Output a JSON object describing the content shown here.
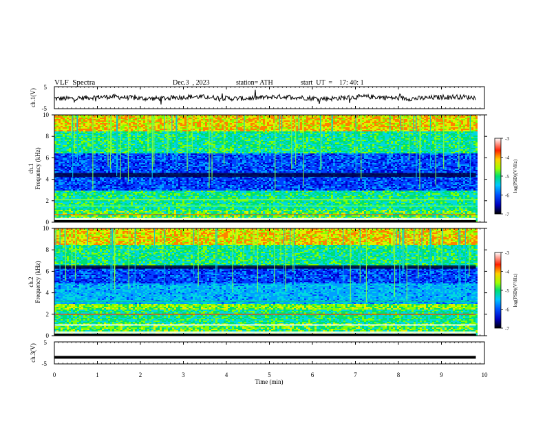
{
  "header": {
    "title": "VLF  Spectra",
    "date": "Dec.3  , 2023",
    "station": "station= ATH",
    "start": "start  UT  =    17: 40: 1"
  },
  "chart_data": [
    {
      "type": "line",
      "panel": "ch1-waveform",
      "ylabel": "ch.1(V)",
      "ylim": [
        -5,
        5
      ],
      "y_ticks": [
        "5",
        "-5"
      ],
      "note_values": "noise-like waveform centered near 0 V over 0–9.8 min"
    },
    {
      "type": "heatmap",
      "panel": "ch1-spectrogram",
      "ylabel_channel": "ch.1",
      "ylabel": "Frequency  (kHz)",
      "ylim": [
        0,
        10
      ],
      "y_ticks": [
        "0",
        "2",
        "4",
        "6",
        "8",
        "10"
      ],
      "colorbar": {
        "label": "log(PSD)(V²/Hz)",
        "range": [
          -7,
          -3
        ],
        "ticks": [
          "-3",
          "-4",
          "-5",
          "-6",
          "-7"
        ],
        "colors": [
          "#000000",
          "#0000c0",
          "#0050ff",
          "#00c8ff",
          "#00e070",
          "#a0ff00",
          "#ffd000",
          "#ff2000",
          "#ffffff"
        ]
      }
    },
    {
      "type": "heatmap",
      "panel": "ch2-spectrogram",
      "ylabel_channel": "ch.2",
      "ylabel": "Frequency  (kHz)",
      "ylim": [
        0,
        10
      ],
      "y_ticks": [
        "0",
        "2",
        "4",
        "6",
        "8",
        "10"
      ],
      "colorbar": {
        "label": "log(PSD)(V²/Hz)",
        "range": [
          -7,
          -3
        ],
        "ticks": [
          "-3",
          "-4",
          "-5",
          "-6",
          "-7"
        ]
      }
    },
    {
      "type": "line",
      "panel": "ch3-waveform",
      "ylabel": "ch.3(V)",
      "ylim": [
        -5,
        5
      ],
      "y_ticks": [
        "5",
        "-5"
      ],
      "level_value": -2
    }
  ],
  "x_axis": {
    "label": "Time  (min)",
    "range": [
      0,
      10
    ],
    "ticks": [
      "0",
      "1",
      "2",
      "3",
      "4",
      "5",
      "6",
      "7",
      "8",
      "9",
      "10"
    ],
    "data_end": 9.8
  }
}
